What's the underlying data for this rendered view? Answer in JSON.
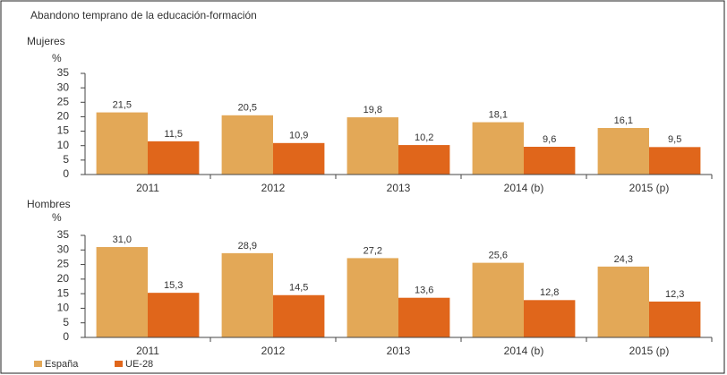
{
  "title": "Abandono temprano de la educación-formación",
  "chart_data": [
    {
      "type": "bar",
      "title": "Mujeres",
      "y_label": "%",
      "categories": [
        "2011",
        "2012",
        "2013",
        "2014 (b)",
        "2015 (p)"
      ],
      "series": [
        {
          "color": "#e3a857",
          "values": [
            21.5,
            20.5,
            19.8,
            18.1,
            16.1
          ],
          "value_labels": [
            "21,5",
            "20,5",
            "19,8",
            "18,1",
            "16,1"
          ]
        },
        {
          "color": "#e0661b",
          "values": [
            11.5,
            10.9,
            10.2,
            9.6,
            9.5
          ],
          "value_labels": [
            "11,5",
            "10,9",
            "10,2",
            "9,6",
            "9,5"
          ]
        }
      ],
      "ylim": [
        0,
        35
      ],
      "yticks": [
        0,
        5,
        10,
        15,
        20,
        25,
        30,
        35
      ],
      "grid": false
    },
    {
      "type": "bar",
      "title": "Hombres",
      "y_label": "%",
      "categories": [
        "2011",
        "2012",
        "2013",
        "2014 (b)",
        "2015 (p)"
      ],
      "series": [
        {
          "name": "España",
          "color": "#e3a857",
          "values": [
            31.0,
            28.9,
            27.2,
            25.6,
            24.3
          ],
          "value_labels": [
            "31,0",
            "28,9",
            "27,2",
            "25,6",
            "24,3"
          ]
        },
        {
          "name": "UE-28",
          "color": "#e0661b",
          "values": [
            15.3,
            14.5,
            13.6,
            12.8,
            12.3
          ],
          "value_labels": [
            "15,3",
            "14,5",
            "13,6",
            "12,8",
            "12,3"
          ]
        }
      ],
      "ylim": [
        0,
        35
      ],
      "yticks": [
        0,
        5,
        10,
        15,
        20,
        25,
        30,
        35
      ],
      "grid": false,
      "legend": "bottom-left"
    }
  ]
}
